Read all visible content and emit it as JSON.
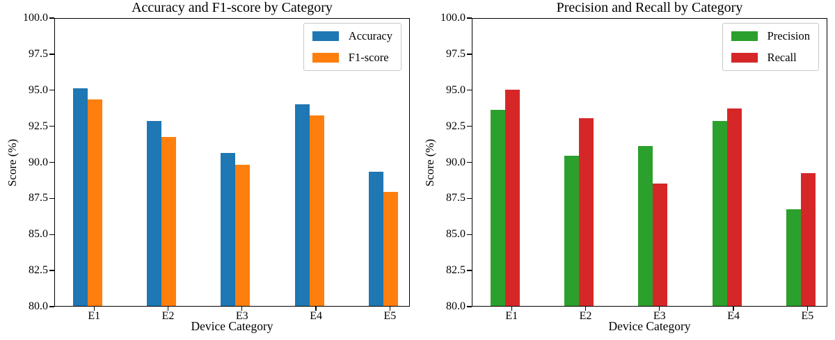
{
  "chart_data": [
    {
      "type": "bar",
      "title": "Accuracy and F1-score by Category",
      "xlabel": "Device Category",
      "ylabel": "Score (%)",
      "categories": [
        "E1",
        "E2",
        "E3",
        "E4",
        "E5"
      ],
      "series": [
        {
          "name": "Accuracy",
          "color": "#1f77b4",
          "values": [
            95.1,
            92.8,
            90.6,
            94.0,
            89.3
          ]
        },
        {
          "name": "F1-score",
          "color": "#ff7f0e",
          "values": [
            94.3,
            91.7,
            89.8,
            93.2,
            87.9
          ]
        }
      ],
      "ylim": [
        80,
        100
      ],
      "ytick_labels": [
        "80.0",
        "82.5",
        "85.0",
        "87.5",
        "90.0",
        "92.5",
        "95.0",
        "97.5",
        "100.0"
      ],
      "legend_position": "upper right",
      "grid": false
    },
    {
      "type": "bar",
      "title": "Precision and Recall by Category",
      "xlabel": "Device Category",
      "ylabel": "Score (%)",
      "categories": [
        "E1",
        "E2",
        "E3",
        "E4",
        "E5"
      ],
      "series": [
        {
          "name": "Precision",
          "color": "#2ca02c",
          "values": [
            93.6,
            90.4,
            91.1,
            92.8,
            86.7
          ]
        },
        {
          "name": "Recall",
          "color": "#d62728",
          "values": [
            95.0,
            93.0,
            88.5,
            93.7,
            89.2
          ]
        }
      ],
      "ylim": [
        80,
        100
      ],
      "ytick_labels": [
        "80.0",
        "82.5",
        "85.0",
        "87.5",
        "90.0",
        "92.5",
        "95.0",
        "97.5",
        "100.0"
      ],
      "legend_position": "upper right",
      "grid": false
    }
  ]
}
